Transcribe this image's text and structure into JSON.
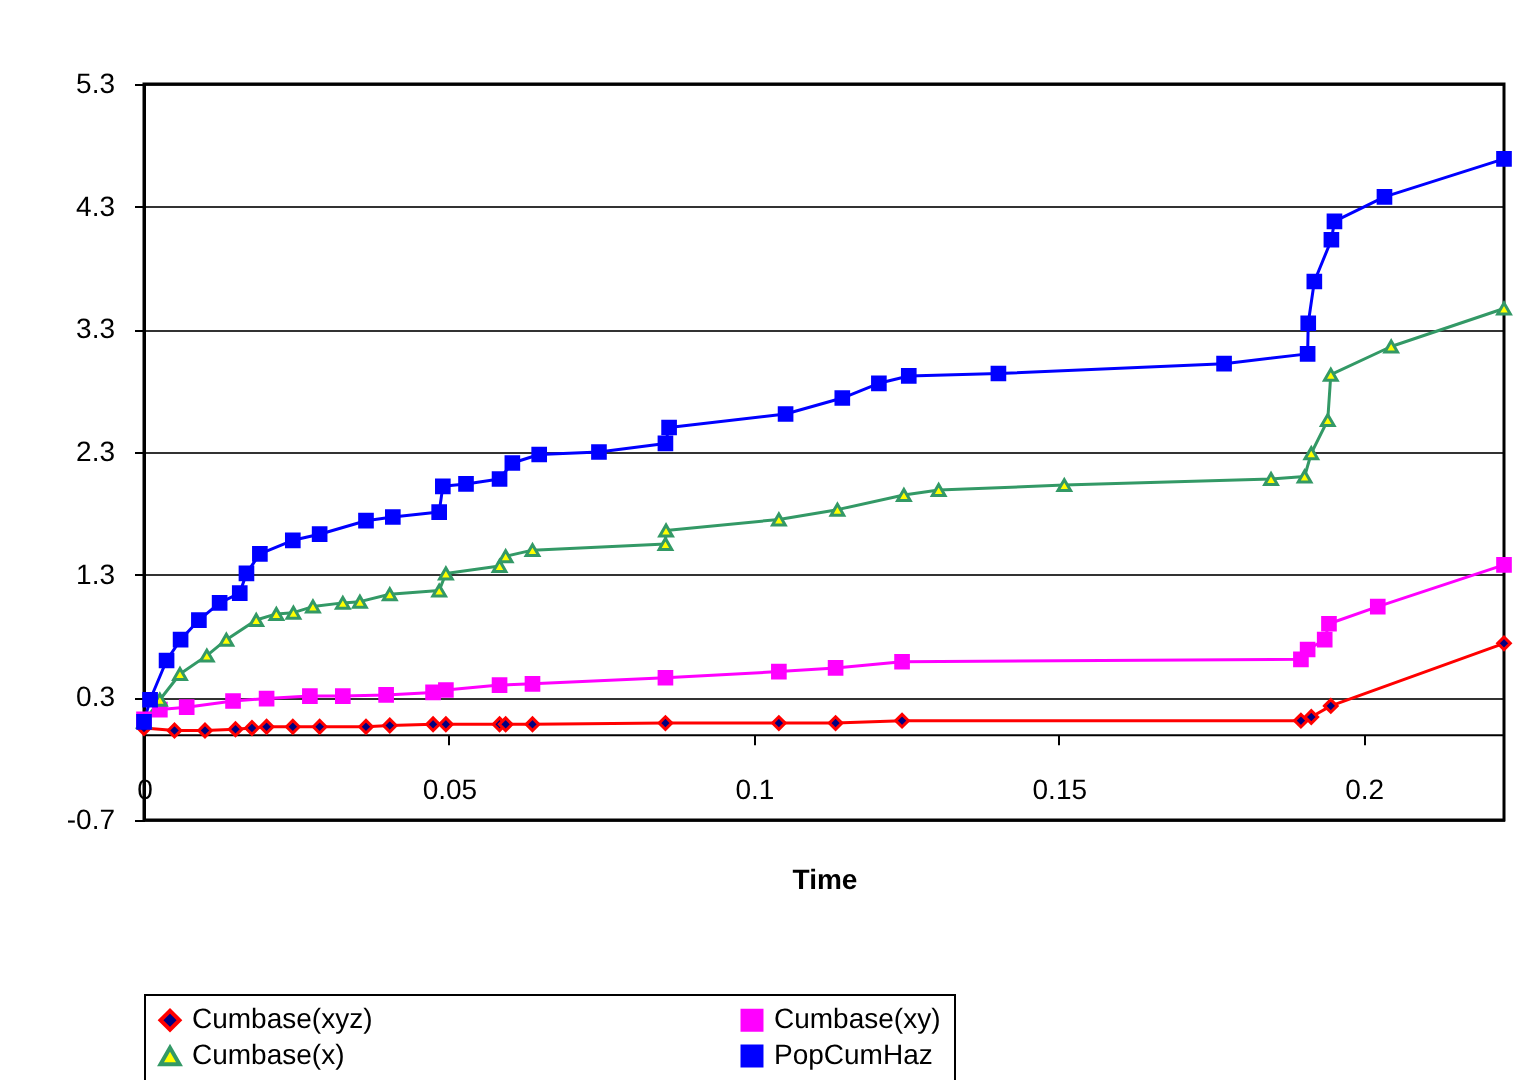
{
  "chart_data": {
    "type": "line",
    "xlabel": "Time",
    "xlim": [
      0,
      0.223
    ],
    "xticks": [
      0,
      0.05,
      0.1,
      0.15,
      0.2
    ],
    "ylim": [
      -0.7,
      5.3
    ],
    "yticks": [
      -0.7,
      0.3,
      1.3,
      2.3,
      3.3,
      4.3,
      5.3
    ],
    "grid": "y",
    "legend": "bottom",
    "series": [
      {
        "name": "Cumbase(xyz)",
        "color": "#ff0000",
        "marker": "diamond",
        "x": [
          0,
          0.005,
          0.01,
          0.015,
          0.0177,
          0.0201,
          0.0244,
          0.0288,
          0.0364,
          0.0403,
          0.0474,
          0.0495,
          0.0583,
          0.0593,
          0.0637,
          0.0855,
          0.1041,
          0.1134,
          0.1243,
          0.1897,
          0.1914,
          0.1946,
          0.223
        ],
        "values": [
          0.05,
          0.03,
          0.03,
          0.04,
          0.05,
          0.06,
          0.06,
          0.06,
          0.06,
          0.07,
          0.08,
          0.08,
          0.08,
          0.08,
          0.08,
          0.09,
          0.09,
          0.09,
          0.11,
          0.11,
          0.14,
          0.23,
          0.74
        ]
      },
      {
        "name": "Cumbase(xy)",
        "color": "#ff00ff",
        "marker": "square",
        "x": [
          0,
          0.0026,
          0.007,
          0.0146,
          0.0201,
          0.0272,
          0.0326,
          0.0397,
          0.0474,
          0.0495,
          0.0583,
          0.0637,
          0.0855,
          0.1041,
          0.1134,
          0.1243,
          0.1897,
          0.1908,
          0.1936,
          0.1943,
          0.2023,
          0.223
        ],
        "values": [
          0.12,
          0.2,
          0.22,
          0.27,
          0.29,
          0.31,
          0.31,
          0.32,
          0.34,
          0.36,
          0.4,
          0.41,
          0.46,
          0.51,
          0.54,
          0.59,
          0.61,
          0.69,
          0.77,
          0.9,
          1.04,
          1.38
        ]
      },
      {
        "name": "Cumbase(x)",
        "color": "#339966",
        "marker": "triangle",
        "x": [
          0,
          0.0026,
          0.0059,
          0.0103,
          0.0135,
          0.0184,
          0.0217,
          0.0245,
          0.0277,
          0.0326,
          0.0354,
          0.0403,
          0.0484,
          0.0495,
          0.0583,
          0.0593,
          0.0637,
          0.0855,
          0.0856,
          0.1041,
          0.1137,
          0.1246,
          0.1303,
          0.1509,
          0.1848,
          0.1903,
          0.1914,
          0.1941,
          0.1946,
          0.2045,
          0.223
        ],
        "values": [
          0.1,
          0.28,
          0.49,
          0.64,
          0.77,
          0.93,
          0.98,
          0.99,
          1.04,
          1.07,
          1.08,
          1.14,
          1.17,
          1.31,
          1.37,
          1.45,
          1.5,
          1.55,
          1.66,
          1.75,
          1.83,
          1.95,
          1.99,
          2.03,
          2.08,
          2.1,
          2.29,
          2.56,
          2.93,
          3.16,
          3.47
        ]
      },
      {
        "name": "PopCumHaz",
        "color": "#0000ff",
        "marker": "square",
        "x": [
          0,
          0.001,
          0.0037,
          0.006,
          0.009,
          0.0124,
          0.0157,
          0.0168,
          0.019,
          0.0244,
          0.0288,
          0.0364,
          0.0408,
          0.0484,
          0.049,
          0.0528,
          0.0583,
          0.0604,
          0.0648,
          0.0746,
          0.0855,
          0.0861,
          0.1052,
          0.1145,
          0.1205,
          0.1254,
          0.1401,
          0.1771,
          0.1908,
          0.1909,
          0.1919,
          0.1947,
          0.1952,
          0.2034,
          0.223
        ],
        "values": [
          0.1,
          0.28,
          0.6,
          0.77,
          0.93,
          1.07,
          1.15,
          1.31,
          1.47,
          1.58,
          1.63,
          1.74,
          1.77,
          1.81,
          2.02,
          2.04,
          2.08,
          2.21,
          2.28,
          2.3,
          2.37,
          2.5,
          2.61,
          2.74,
          2.86,
          2.92,
          2.94,
          3.02,
          3.1,
          3.35,
          3.69,
          4.03,
          4.18,
          4.38,
          4.69
        ]
      }
    ]
  }
}
